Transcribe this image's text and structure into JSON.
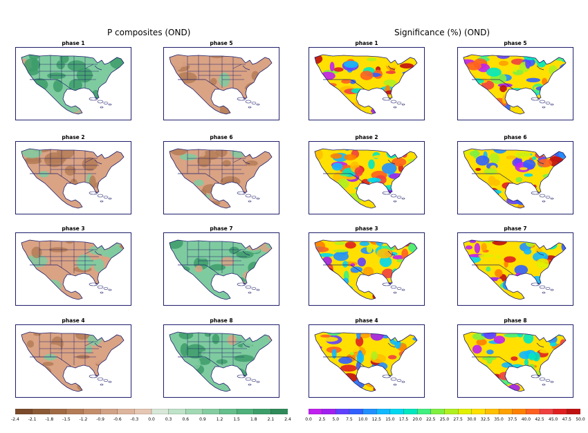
{
  "headers": {
    "left": "P composites (OND)",
    "right": "Significance (%) (OND)"
  },
  "panels": {
    "left": [
      "phase 1",
      "phase 5",
      "phase 2",
      "phase 6",
      "phase 3",
      "phase 7",
      "phase 4",
      "phase 8"
    ],
    "right": [
      "phase 1",
      "phase 5",
      "phase 2",
      "phase 6",
      "phase 3",
      "phase 7",
      "phase 4",
      "phase 8"
    ]
  },
  "chart_data": [
    {
      "type": "heatmap",
      "title": "P composites (OND)",
      "facets": [
        "phase 1",
        "phase 5",
        "phase 2",
        "phase 6",
        "phase 3",
        "phase 7",
        "phase 4",
        "phase 8"
      ],
      "facet_pattern": {
        "phase 1": "wet",
        "phase 5": "dry",
        "phase 2": "dry",
        "phase 6": "dry",
        "phase 3": "mixed",
        "phase 7": "wet",
        "phase 4": "dry",
        "phase 8": "wet"
      },
      "colorbar": {
        "ticks": [
          "-2.4",
          "-2.1",
          "-1.8",
          "-1.5",
          "-1.2",
          "-0.9",
          "-0.6",
          "-0.3",
          "0.0",
          "0.3",
          "0.6",
          "0.9",
          "1.2",
          "1.5",
          "1.8",
          "2.1",
          "2.4"
        ],
        "colors": [
          "#7a4a2a",
          "#8c5a36",
          "#a06a44",
          "#b47c56",
          "#c48e6c",
          "#d2a286",
          "#ddb59d",
          "#e6c7b4",
          "#d8e8d8",
          "#bfe3c8",
          "#a2d9b4",
          "#84cda0",
          "#66bf8c",
          "#4fb07a",
          "#3d9e6a",
          "#2f8a5a"
        ],
        "range": [
          -2.4,
          2.4
        ]
      }
    },
    {
      "type": "heatmap",
      "title": "Significance (%) (OND)",
      "facets": [
        "phase 1",
        "phase 5",
        "phase 2",
        "phase 6",
        "phase 3",
        "phase 7",
        "phase 4",
        "phase 8"
      ],
      "colorbar": {
        "ticks": [
          "0.0",
          "2.5",
          "5.0",
          "7.5",
          "10.0",
          "12.5",
          "15.0",
          "17.5",
          "20.0",
          "22.5",
          "25.0",
          "27.5",
          "30.0",
          "32.5",
          "35.0",
          "37.5",
          "40.0",
          "42.5",
          "45.0",
          "47.5",
          "50.0"
        ],
        "colors": [
          "#c020f0",
          "#a020f0",
          "#6040ff",
          "#3060ff",
          "#2090ff",
          "#10b8ff",
          "#00d8f0",
          "#00e8c0",
          "#40f080",
          "#80f040",
          "#b0f020",
          "#e0f000",
          "#ffe000",
          "#ffc000",
          "#ffa000",
          "#ff8000",
          "#ff6020",
          "#f04040",
          "#e02020",
          "#c01010"
        ],
        "range": [
          0,
          50
        ]
      }
    }
  ],
  "colors": {
    "frame": "#1c1c6b",
    "dry": "#d9a384",
    "dry_strong": "#b47c56",
    "wet": "#7fcba0",
    "wet_strong": "#3d9e6a",
    "neutral": "#e6c7b4"
  }
}
